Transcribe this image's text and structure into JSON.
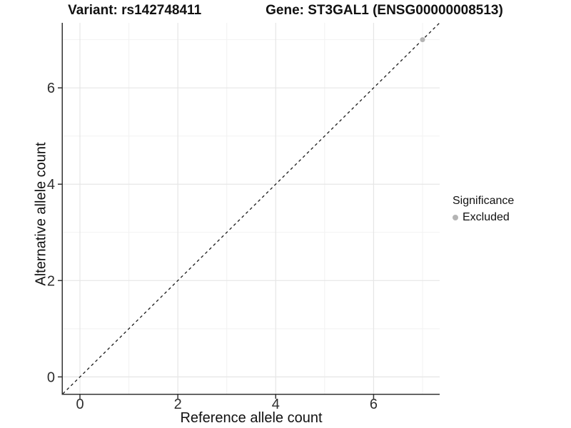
{
  "title": {
    "variant": "Variant: rs142748411",
    "gene": "Gene: ST3GAL1 (ENSG00000008513)"
  },
  "axes": {
    "x_title": "Reference allele count",
    "y_title": "Alternative allele count"
  },
  "legend": {
    "title": "Significance",
    "items": [
      {
        "label": "Excluded",
        "color": "#b4b4b4"
      }
    ]
  },
  "chart_data": {
    "type": "scatter",
    "title": "Variant: rs142748411    Gene: ST3GAL1 (ENSG00000008513)",
    "xlabel": "Reference allele count",
    "ylabel": "Alternative allele count",
    "xlim": [
      -0.35,
      7.35
    ],
    "ylim": [
      -0.35,
      7.35
    ],
    "x_major_ticks": [
      0,
      2,
      4,
      6
    ],
    "x_minor_ticks": [
      1,
      3,
      5,
      7
    ],
    "y_major_ticks": [
      0,
      2,
      4,
      6
    ],
    "y_minor_ticks": [
      1,
      3,
      5,
      7
    ],
    "grid": "major+minor",
    "legend_position": "right",
    "legend_title": "Significance",
    "reference_line": {
      "type": "identity",
      "slope": 1,
      "intercept": 0,
      "linestyle": "dashed",
      "color": "#1a1a1a"
    },
    "series": [
      {
        "name": "Excluded",
        "color": "#b4b4b4",
        "points": [
          {
            "x": 7,
            "y": 7
          }
        ]
      }
    ],
    "style": {
      "grid_major_color": "#e6e6e6",
      "grid_minor_color": "#f2f2f2",
      "axis_color": "#333333",
      "tick_label_color": "#2e2e2e",
      "tick_label_size": 20,
      "point_radius": 3.5
    }
  }
}
